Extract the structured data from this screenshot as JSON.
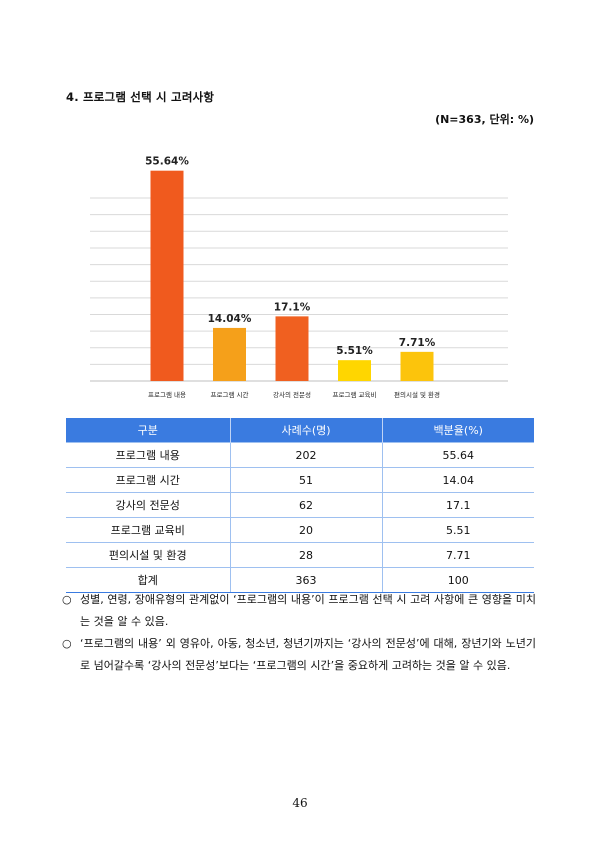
{
  "section": {
    "title": "4. 프로그램 선택 시 고려사항",
    "meta": "(N=363, 단위: %)"
  },
  "chart_data": {
    "type": "bar",
    "categories": [
      "프로그램 내용",
      "프로그램 시간",
      "강사의 전문성",
      "프로그램 교육비",
      "편의시설 및 환경"
    ],
    "values": [
      55.64,
      14.04,
      17.1,
      5.51,
      7.71
    ],
    "data_labels": [
      "55.64%",
      "14.04%",
      "17.1%",
      "5.51%",
      "7.71%"
    ],
    "colors": [
      "#f05a1e",
      "#f5a01a",
      "#f06020",
      "#ffd600",
      "#fcc40c"
    ],
    "ylim": [
      0,
      60
    ],
    "grid": true,
    "legend": "none"
  },
  "table": {
    "headers": [
      "구분",
      "사례수(명)",
      "백분율(%)"
    ],
    "rows": [
      [
        "프로그램 내용",
        "202",
        "55.64"
      ],
      [
        "프로그램 시간",
        "51",
        "14.04"
      ],
      [
        "강사의 전문성",
        "62",
        "17.1"
      ],
      [
        "프로그램 교육비",
        "20",
        "5.51"
      ],
      [
        "편의시설 및 환경",
        "28",
        "7.71"
      ],
      [
        "합계",
        "363",
        "100"
      ]
    ],
    "header_color": "#3a7be0"
  },
  "notes": [
    {
      "bullet": "○",
      "text": "성별, 연령, 장애유형의 관계없이 ‘프로그램의 내용’이 프로그램 선택 시 고려 사항에 큰 영향을 미치는 것을 알 수 있음."
    },
    {
      "bullet": "○",
      "text": "‘프로그램의 내용’ 외 영유아, 아동, 청소년, 청년기까지는 ‘강사의 전문성’에 대해, 장년기와 노년기로 넘어갈수록 ‘강사의 전문성’보다는 ‘프로그램의 시간’을 중요하게 고려하는 것을 알 수 있음."
    }
  ],
  "page_number": "46"
}
